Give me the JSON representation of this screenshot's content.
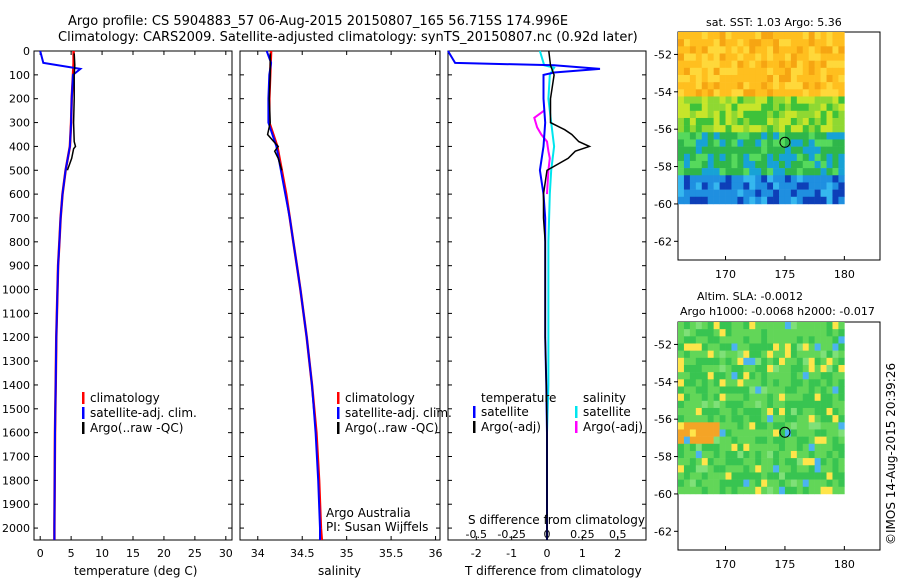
{
  "header": {
    "line1": "Argo profile: CS 5904883_57 06-Aug-2015 20150807_165 56.715S 174.996E",
    "line2": "Climatology: CARS2009. Satellite-adjusted climatology: synTS_20150807.nc (0.92d later)"
  },
  "colors": {
    "climatology": "#ff0000",
    "satellite": "#0000ff",
    "argo": "#000000",
    "sal_satellite": "#00e5ee",
    "sal_argo": "#ff00ff"
  },
  "chart_data": [
    {
      "type": "line",
      "xlabel": "temperature (deg C)",
      "xticks": [
        "0",
        "5",
        "10",
        "15",
        "20",
        "25",
        "30"
      ],
      "xlim": [
        -1,
        31
      ],
      "ylim": [
        2050,
        0
      ],
      "yticks": [
        "0",
        "100",
        "200",
        "300",
        "400",
        "500",
        "600",
        "700",
        "800",
        "900",
        "1000",
        "1100",
        "1200",
        "1300",
        "1400",
        "1500",
        "1600",
        "1700",
        "1800",
        "1900",
        "2000"
      ],
      "legend": [
        "climatology",
        "satellite-adj. clim.",
        "Argo(..raw -QC)"
      ],
      "series": [
        {
          "name": "climatology",
          "depth": [
            0,
            50,
            100,
            200,
            300,
            400,
            500,
            600,
            700,
            800,
            900,
            1000,
            1200,
            1400,
            1600,
            1800,
            2000,
            2050
          ],
          "values": [
            5.4,
            5.4,
            5.3,
            5.1,
            5.0,
            4.8,
            4.1,
            3.6,
            3.3,
            3.1,
            2.9,
            2.8,
            2.6,
            2.5,
            2.4,
            2.35,
            2.3,
            2.3
          ]
        },
        {
          "name": "satellite-adj. clim.",
          "depth": [
            0,
            50,
            75,
            100,
            200,
            300,
            400,
            500,
            600,
            700,
            800,
            900,
            1000,
            1200,
            1400,
            1600,
            1800,
            2000,
            2050
          ],
          "values": [
            0,
            0.5,
            6.5,
            5.3,
            5.1,
            5.0,
            4.8,
            4.1,
            3.6,
            3.3,
            3.1,
            2.9,
            2.8,
            2.6,
            2.5,
            2.4,
            2.35,
            2.3,
            2.3
          ]
        },
        {
          "name": "Argo(..raw -QC)",
          "depth": [
            10,
            60,
            100,
            200,
            300,
            380,
            400,
            410,
            450,
            500
          ],
          "values": [
            5.5,
            5.6,
            5.5,
            5.5,
            5.4,
            5.5,
            5.7,
            5.4,
            5.1,
            4.4
          ]
        }
      ]
    },
    {
      "type": "line",
      "xlabel": "salinity",
      "xticks": [
        "34",
        "34.5",
        "35",
        "35.5",
        "36"
      ],
      "xlim": [
        33.8,
        36.05
      ],
      "ylim": [
        2050,
        0
      ],
      "legend": [
        "climatology",
        "satellite-adj. clim.",
        "Argo(..raw -QC)"
      ],
      "annotation": [
        "Argo Australia",
        "PI: Susan Wijffels"
      ],
      "series": [
        {
          "name": "climatology",
          "depth": [
            0,
            100,
            200,
            300,
            400,
            500,
            600,
            700,
            800,
            900,
            1000,
            1200,
            1400,
            1600,
            1800,
            2000,
            2050
          ],
          "values": [
            34.15,
            34.14,
            34.13,
            34.13,
            34.22,
            34.27,
            34.32,
            34.36,
            34.4,
            34.44,
            34.48,
            34.55,
            34.61,
            34.66,
            34.69,
            34.71,
            34.72
          ]
        },
        {
          "name": "satellite-adj. clim.",
          "depth": [
            0,
            50,
            100,
            200,
            300,
            400,
            500,
            600,
            700,
            800,
            900,
            1000,
            1200,
            1400,
            1600,
            1800,
            2000,
            2050
          ],
          "values": [
            34.1,
            34.15,
            34.13,
            34.12,
            34.12,
            34.21,
            34.26,
            34.31,
            34.36,
            34.4,
            34.44,
            34.48,
            34.55,
            34.61,
            34.65,
            34.68,
            34.7,
            34.7
          ]
        },
        {
          "name": "Argo(..raw -QC)",
          "depth": [
            10,
            100,
            200,
            300,
            350,
            380,
            400,
            420,
            450,
            500
          ],
          "values": [
            34.14,
            34.14,
            34.13,
            34.14,
            34.11,
            34.18,
            34.23,
            34.19,
            34.23,
            34.27
          ]
        }
      ]
    },
    {
      "type": "line",
      "xlabel": "T difference from climatology",
      "xticks": [
        "-2",
        "-1",
        "0",
        "1",
        "2"
      ],
      "xlim": [
        -2.8,
        2.8
      ],
      "top_label": "S difference from climatology",
      "top_ticks": [
        "-0.5",
        "-0.25",
        "0",
        "0.25",
        "0.5"
      ],
      "ylim": [
        2050,
        0
      ],
      "legend_left_title": "temperature",
      "legend_right_title": "salinity",
      "legend_left": [
        "satellite",
        "Argo(-adj)"
      ],
      "legend_right": [
        "satellite",
        "Argo(-adj)"
      ],
      "series": [
        {
          "name": "temperature satellite",
          "depth": [
            0,
            50,
            60,
            75,
            90,
            100,
            200,
            300,
            400,
            500,
            600,
            700,
            800,
            1000,
            1200,
            1400,
            1600,
            1800,
            2000,
            2050
          ],
          "values": [
            -2.8,
            -2.6,
            0.2,
            1.5,
            0.2,
            -0.1,
            -0.1,
            -0.05,
            -0.1,
            -0.2,
            -0.1,
            -0.05,
            -0.05,
            -0.05,
            -0.05,
            -0.02,
            0,
            0,
            0,
            0
          ]
        },
        {
          "name": "temperature Argo(-adj)",
          "depth": [
            0,
            60,
            100,
            200,
            300,
            330,
            350,
            380,
            400,
            420,
            450,
            500,
            600,
            700,
            800,
            1000,
            1200,
            1400,
            1600,
            1800,
            2000,
            2050
          ],
          "values": [
            0.05,
            0.1,
            0.2,
            0.1,
            0.1,
            0.5,
            0.7,
            0.9,
            1.2,
            0.8,
            0.6,
            0,
            -0.1,
            -0.1,
            -0.05,
            -0.05,
            -0.05,
            -0.02,
            0,
            0,
            0,
            0
          ]
        },
        {
          "name": "salinity satellite",
          "depth": [
            0,
            60,
            70,
            100,
            200,
            300,
            400,
            500,
            600,
            800,
            1000,
            1200,
            1400,
            1600,
            1800,
            2000,
            2050
          ],
          "values": [
            -0.05,
            -0.02,
            0.05,
            0.02,
            0.01,
            0.03,
            0.05,
            0.03,
            0.02,
            0.01,
            0.01,
            0.01,
            0.01,
            0.0,
            0.0,
            0.0,
            0.0
          ]
        },
        {
          "name": "salinity Argo(-adj)",
          "depth": [
            250,
            280,
            320,
            350,
            380,
            420,
            450,
            500,
            600
          ],
          "values": [
            -0.02,
            -0.09,
            -0.07,
            -0.04,
            0.0,
            0.01,
            0.02,
            0.01,
            0.0
          ]
        }
      ]
    },
    {
      "type": "heatmap",
      "title": "sat. SST: 1.03 Argo: 5.36",
      "xticks": [
        "170",
        "175",
        "180"
      ],
      "yticks": [
        "-52",
        "-54",
        "-56",
        "-58",
        "-60",
        "-62"
      ]
    },
    {
      "type": "heatmap",
      "title_line1": "Altim. SLA: -0.0012",
      "title_line2": "Argo h1000: -0.0068 h2000: -0.017",
      "xticks": [
        "170",
        "175",
        "180"
      ],
      "yticks": [
        "-52",
        "-54",
        "-56",
        "-58",
        "-60",
        "-62"
      ]
    }
  ],
  "footer": {
    "credit": "©IMOS 14-Aug-2015 20:39:26"
  }
}
